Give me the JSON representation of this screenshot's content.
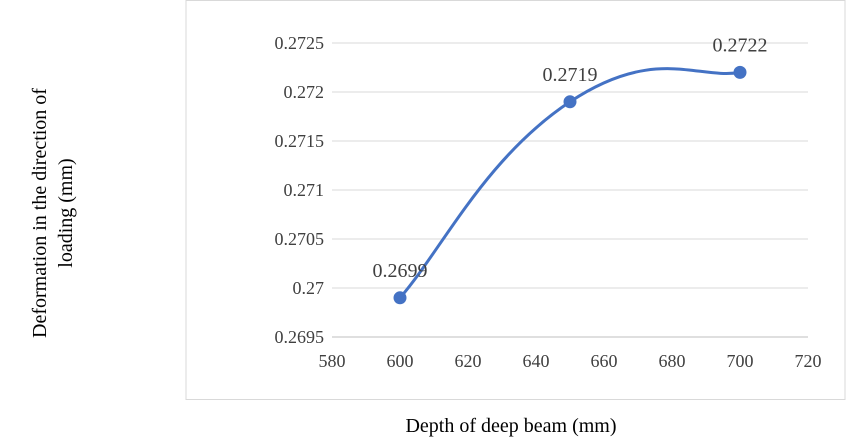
{
  "chart_data": {
    "type": "line",
    "smooth": true,
    "title": "",
    "xlabel": "Depth of deep beam (mm)",
    "ylabel": "Deformation in the direction of loading (mm)",
    "ylabel_lines": [
      "Deformation in the direction of",
      "loading (mm)"
    ],
    "xlim": [
      580,
      720
    ],
    "ylim": [
      0.2695,
      0.2725
    ],
    "x_ticks": [
      580,
      600,
      620,
      640,
      660,
      680,
      700,
      720
    ],
    "y_ticks": [
      "0.2695",
      "0.27",
      "0.2705",
      "0.271",
      "0.2715",
      "0.272",
      "0.2725"
    ],
    "grid": "horizontal",
    "legend": "none",
    "series": [
      {
        "x": [
          600,
          650,
          700
        ],
        "y": [
          0.2699,
          0.2719,
          0.2722
        ],
        "data_labels": [
          "0.2699",
          "0.2719",
          "0.2722"
        ],
        "color": "#4472C4"
      }
    ]
  }
}
